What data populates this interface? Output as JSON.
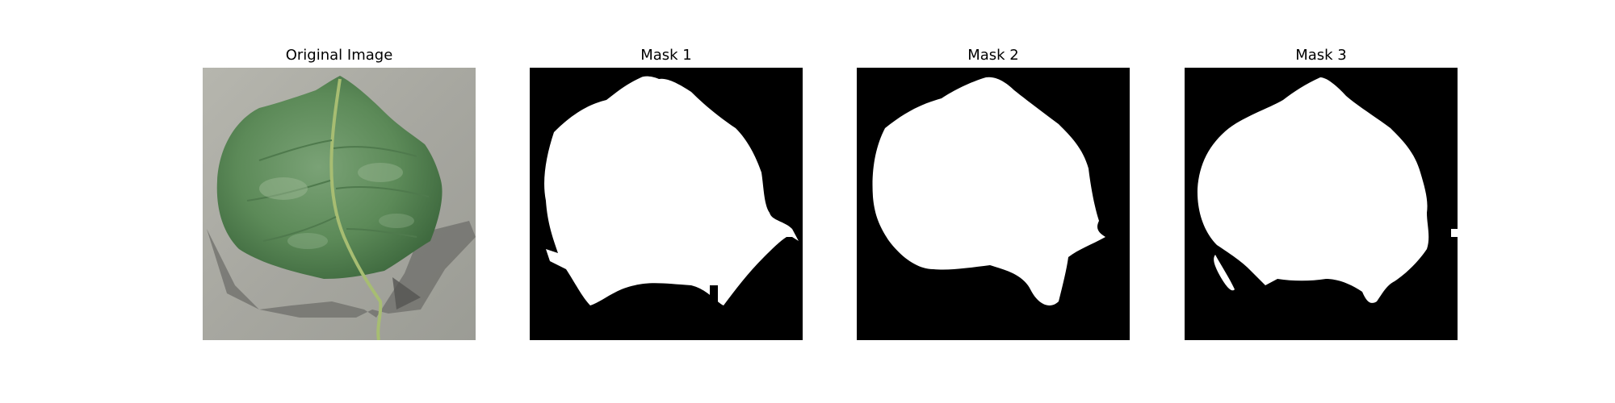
{
  "panels": [
    {
      "title": "Original Image",
      "content": "leaf-photo"
    },
    {
      "title": "Mask 1",
      "content": "binary-mask"
    },
    {
      "title": "Mask 2",
      "content": "binary-mask"
    },
    {
      "title": "Mask 3",
      "content": "binary-mask"
    }
  ],
  "colors": {
    "mask_foreground": "#ffffff",
    "mask_background": "#000000",
    "leaf": "#5f8f5a",
    "photo_background": "#a9a9a1"
  }
}
